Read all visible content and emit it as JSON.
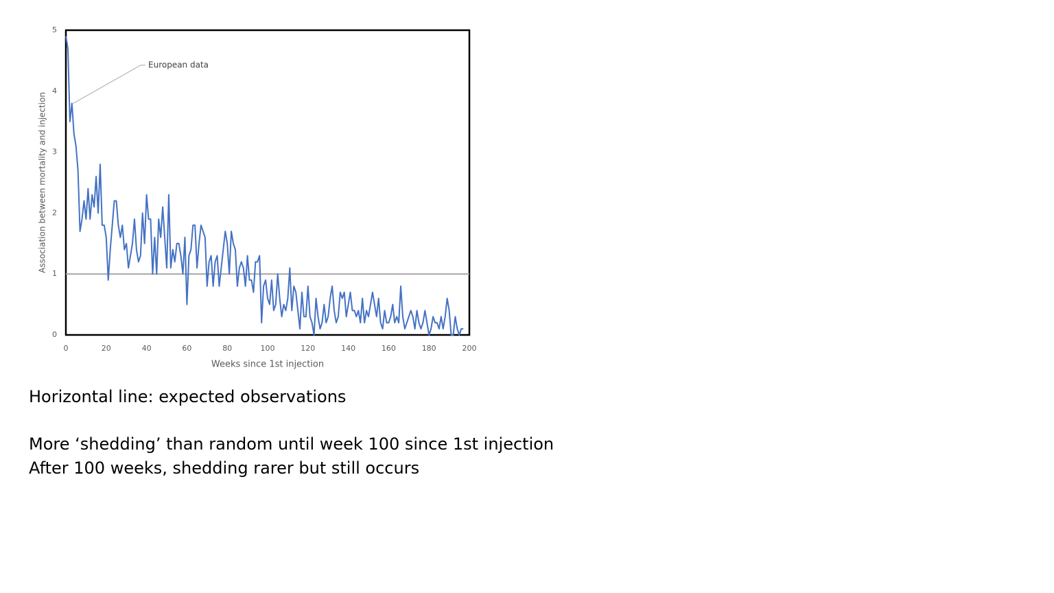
{
  "chart_data": {
    "type": "line",
    "x": [
      0,
      1,
      2,
      3,
      4,
      5,
      6,
      7,
      8,
      9,
      10,
      11,
      12,
      13,
      14,
      15,
      16,
      17,
      18,
      19,
      20,
      21,
      22,
      23,
      24,
      25,
      26,
      27,
      28,
      29,
      30,
      31,
      32,
      33,
      34,
      35,
      36,
      37,
      38,
      39,
      40,
      41,
      42,
      43,
      44,
      45,
      46,
      47,
      48,
      49,
      50,
      51,
      52,
      53,
      54,
      55,
      56,
      57,
      58,
      59,
      60,
      61,
      62,
      63,
      64,
      65,
      66,
      67,
      68,
      69,
      70,
      71,
      72,
      73,
      74,
      75,
      76,
      77,
      78,
      79,
      80,
      81,
      82,
      83,
      84,
      85,
      86,
      87,
      88,
      89,
      90,
      91,
      92,
      93,
      94,
      95,
      96,
      97,
      98,
      99,
      100,
      101,
      102,
      103,
      104,
      105,
      106,
      107,
      108,
      109,
      110,
      111,
      112,
      113,
      114,
      115,
      116,
      117,
      118,
      119,
      120,
      121,
      122,
      123,
      124,
      125,
      126,
      127,
      128,
      129,
      130,
      131,
      132,
      133,
      134,
      135,
      136,
      137,
      138,
      139,
      140,
      141,
      142,
      143,
      144,
      145,
      146,
      147,
      148,
      149,
      150,
      151,
      152,
      153,
      154,
      155,
      156,
      157,
      158,
      159,
      160,
      161,
      162,
      163,
      164,
      165,
      166,
      167,
      168,
      169,
      170,
      171,
      172,
      173,
      174,
      175,
      176,
      177,
      178,
      179,
      180,
      181,
      182,
      183,
      184,
      185,
      186,
      187,
      188,
      189,
      190,
      191,
      192,
      193,
      194,
      195,
      196,
      197
    ],
    "series": [
      {
        "name": "European data",
        "color": "#4472c4",
        "values": [
          4.9,
          4.7,
          3.5,
          3.8,
          3.3,
          3.1,
          2.7,
          1.7,
          1.9,
          2.2,
          1.9,
          2.4,
          1.9,
          2.3,
          2.1,
          2.6,
          2.0,
          2.8,
          1.8,
          1.8,
          1.6,
          0.9,
          1.4,
          1.8,
          2.2,
          2.2,
          1.8,
          1.6,
          1.8,
          1.4,
          1.5,
          1.1,
          1.3,
          1.5,
          1.9,
          1.4,
          1.2,
          1.3,
          2.0,
          1.5,
          2.3,
          1.9,
          1.9,
          1.0,
          1.6,
          1.0,
          1.9,
          1.6,
          2.1,
          1.6,
          1.1,
          2.3,
          1.1,
          1.4,
          1.2,
          1.5,
          1.5,
          1.3,
          1.0,
          1.6,
          0.5,
          1.3,
          1.4,
          1.8,
          1.8,
          1.1,
          1.5,
          1.8,
          1.7,
          1.6,
          0.8,
          1.2,
          1.3,
          0.8,
          1.2,
          1.3,
          0.8,
          1.1,
          1.4,
          1.7,
          1.5,
          1.0,
          1.7,
          1.5,
          1.4,
          0.8,
          1.1,
          1.2,
          1.1,
          0.8,
          1.3,
          0.9,
          0.9,
          0.7,
          1.2,
          1.2,
          1.3,
          0.2,
          0.8,
          0.9,
          0.6,
          0.5,
          0.9,
          0.4,
          0.5,
          1.0,
          0.6,
          0.3,
          0.5,
          0.4,
          0.6,
          1.1,
          0.4,
          0.8,
          0.7,
          0.4,
          0.1,
          0.7,
          0.3,
          0.3,
          0.8,
          0.3,
          0.2,
          0.0,
          0.6,
          0.3,
          0.1,
          0.2,
          0.5,
          0.2,
          0.3,
          0.6,
          0.8,
          0.4,
          0.2,
          0.3,
          0.7,
          0.6,
          0.7,
          0.3,
          0.5,
          0.7,
          0.4,
          0.4,
          0.3,
          0.4,
          0.2,
          0.6,
          0.2,
          0.4,
          0.3,
          0.5,
          0.7,
          0.5,
          0.3,
          0.6,
          0.2,
          0.1,
          0.4,
          0.2,
          0.2,
          0.3,
          0.5,
          0.2,
          0.3,
          0.2,
          0.8,
          0.3,
          0.1,
          0.2,
          0.3,
          0.4,
          0.3,
          0.1,
          0.4,
          0.2,
          0.1,
          0.2,
          0.4,
          0.2,
          0.0,
          0.1,
          0.3,
          0.2,
          0.2,
          0.1,
          0.3,
          0.1,
          0.3,
          0.6,
          0.4,
          0.0,
          0.0,
          0.3,
          0.1,
          0.0,
          0.1,
          0.1
        ]
      }
    ],
    "annotation": {
      "text": "European data",
      "x": 3,
      "y": 3.8
    },
    "reference_line": {
      "value": 1,
      "color": "#a6a6a6"
    },
    "xlabel": "Weeks since 1st injection",
    "ylabel": "Association between mortality and injection",
    "xlim": [
      0,
      200
    ],
    "xticks": [
      0,
      20,
      40,
      60,
      80,
      100,
      120,
      140,
      160,
      180,
      200
    ],
    "ylim": [
      0,
      5
    ],
    "yticks": [
      0,
      1,
      2,
      3,
      4,
      5
    ],
    "grid": false
  },
  "notes": [
    "Horizontal line: expected observations",
    "More ‘shedding’ than random until week 100 since 1st injection",
    "After 100 weeks, shedding rarer but still occurs"
  ]
}
